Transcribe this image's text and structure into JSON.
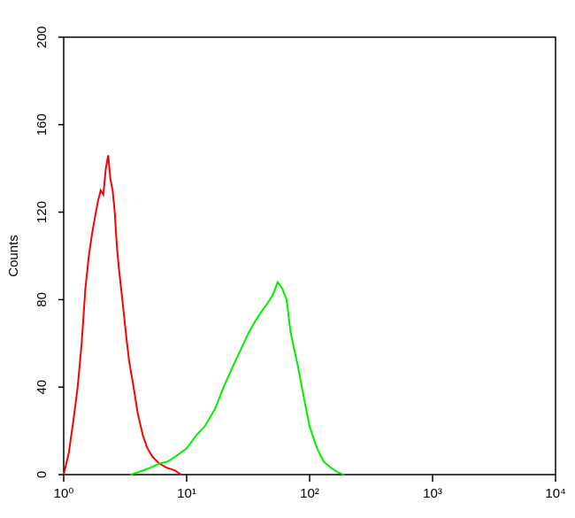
{
  "chart_data": {
    "type": "line",
    "y_label": "Counts",
    "xlog": true,
    "xlim": [
      1,
      10000
    ],
    "xticks": [
      {
        "value": 1,
        "label": "10⁰"
      },
      {
        "value": 10,
        "label": "10¹"
      },
      {
        "value": 100,
        "label": "10²"
      },
      {
        "value": 1000,
        "label": "10³"
      },
      {
        "value": 10000,
        "label": "10⁴"
      }
    ],
    "ylim": [
      0,
      200
    ],
    "yticks": [
      0,
      40,
      80,
      120,
      160,
      200
    ],
    "series": [
      {
        "color": "#ff0000",
        "x": [
          1.0,
          1.1,
          1.2,
          1.3,
          1.4,
          1.5,
          1.6,
          1.7,
          1.8,
          1.9,
          2.0,
          2.1,
          2.2,
          2.3,
          2.4,
          2.5,
          2.6,
          2.7,
          2.8,
          3.0,
          3.2,
          3.4,
          3.7,
          4.0,
          4.4,
          4.8,
          5.3,
          6.0,
          7.0,
          8.0,
          9.0
        ],
        "values": [
          0,
          10,
          25,
          40,
          60,
          85,
          100,
          110,
          118,
          125,
          130,
          128,
          140,
          146,
          135,
          130,
          120,
          105,
          95,
          80,
          65,
          52,
          40,
          28,
          18,
          12,
          8,
          5,
          3,
          2,
          0
        ]
      },
      {
        "color": "#00ee00",
        "x": [
          3.5,
          4,
          5,
          6,
          7,
          8,
          10,
          12,
          14,
          17,
          20,
          24,
          28,
          32,
          36,
          40,
          45,
          50,
          55,
          60,
          65,
          70,
          80,
          90,
          100,
          115,
          130,
          150,
          170,
          190
        ],
        "values": [
          0,
          1,
          3,
          5,
          6,
          8,
          12,
          18,
          22,
          30,
          40,
          50,
          58,
          65,
          70,
          74,
          78,
          82,
          88,
          85,
          80,
          65,
          50,
          35,
          22,
          12,
          6,
          3,
          1,
          0
        ]
      }
    ]
  }
}
